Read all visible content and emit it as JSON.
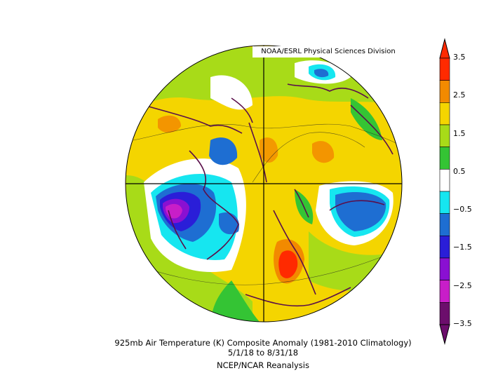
{
  "credit": "NOAA/ESRL Physical Sciences Division",
  "caption": {
    "line1": "925mb Air Temperature (K) Composite Anomaly (1981-2010 Climatology)",
    "line2": "5/1/18 to 8/31/18",
    "line3": "NCEP/NCAR Reanalysis"
  },
  "colorbar": {
    "labels": [
      "3.5",
      "2.5",
      "1.5",
      "0.5",
      "−0.5",
      "−1.5",
      "−2.5",
      "−3.5"
    ],
    "colors": [
      "#ff2a00",
      "#f28a00",
      "#f4d500",
      "#a8db18",
      "#34c434",
      "#ffffff",
      "#16e6f0",
      "#1e6ed2",
      "#2a1ed8",
      "#8a10d2",
      "#c81ec8",
      "#6c0e6c"
    ]
  },
  "map": {
    "projection": "north polar stereographic",
    "ocean_color": "#f4d500",
    "coast_color": "#5a0f4a"
  }
}
